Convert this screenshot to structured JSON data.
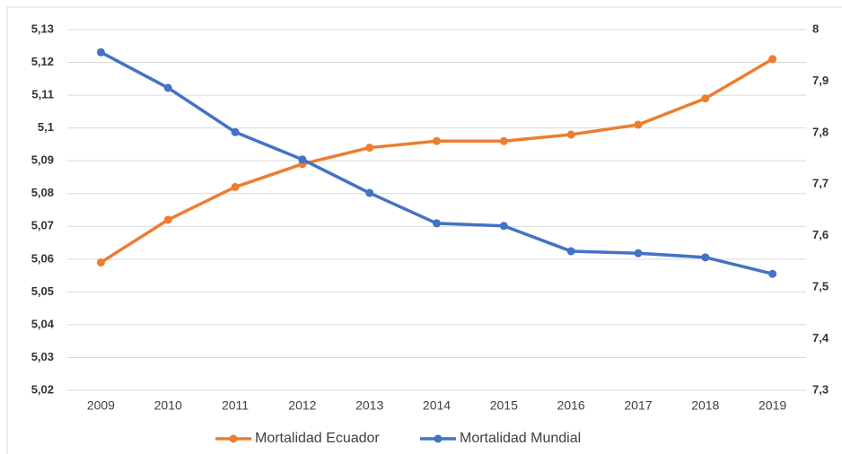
{
  "chart_data": {
    "type": "line",
    "categories": [
      "2009",
      "2010",
      "2011",
      "2012",
      "2013",
      "2014",
      "2015",
      "2016",
      "2017",
      "2018",
      "2019"
    ],
    "series": [
      {
        "name": "Mortalidad Ecuador",
        "color": "#ed7d31",
        "axis": "y",
        "values": [
          5.059,
          5.072,
          5.082,
          5.089,
          5.094,
          5.096,
          5.096,
          5.098,
          5.101,
          5.109,
          5.121
        ]
      },
      {
        "name": "Mortalidad Mundial",
        "color": "#4472c4",
        "axis": "y2",
        "values": [
          7.956,
          7.887,
          7.801,
          7.748,
          7.683,
          7.624,
          7.619,
          7.57,
          7.566,
          7.558,
          7.526
        ]
      }
    ],
    "ylim": [
      5.02,
      5.13
    ],
    "yticks": [
      {
        "value": 5.02,
        "label": "5,02"
      },
      {
        "value": 5.03,
        "label": "5,03"
      },
      {
        "value": 5.04,
        "label": "5,04"
      },
      {
        "value": 5.05,
        "label": "5,05"
      },
      {
        "value": 5.06,
        "label": "5,06"
      },
      {
        "value": 5.07,
        "label": "5,07"
      },
      {
        "value": 5.08,
        "label": "5,08"
      },
      {
        "value": 5.09,
        "label": "5,09"
      },
      {
        "value": 5.1,
        "label": "5,1"
      },
      {
        "value": 5.11,
        "label": "5,11"
      },
      {
        "value": 5.12,
        "label": "5,12"
      },
      {
        "value": 5.13,
        "label": "5,13"
      }
    ],
    "y2lim": [
      7.3,
      8
    ],
    "y2ticks": [
      {
        "value": 7.3,
        "label": "7,3"
      },
      {
        "value": 7.4,
        "label": "7,4"
      },
      {
        "value": 7.5,
        "label": "7,5"
      },
      {
        "value": 7.6,
        "label": "7,6"
      },
      {
        "value": 7.7,
        "label": "7,7"
      },
      {
        "value": 7.8,
        "label": "7,8"
      },
      {
        "value": 7.9,
        "label": "7,9"
      },
      8
    ],
    "grid": true,
    "legend": "bottom"
  }
}
